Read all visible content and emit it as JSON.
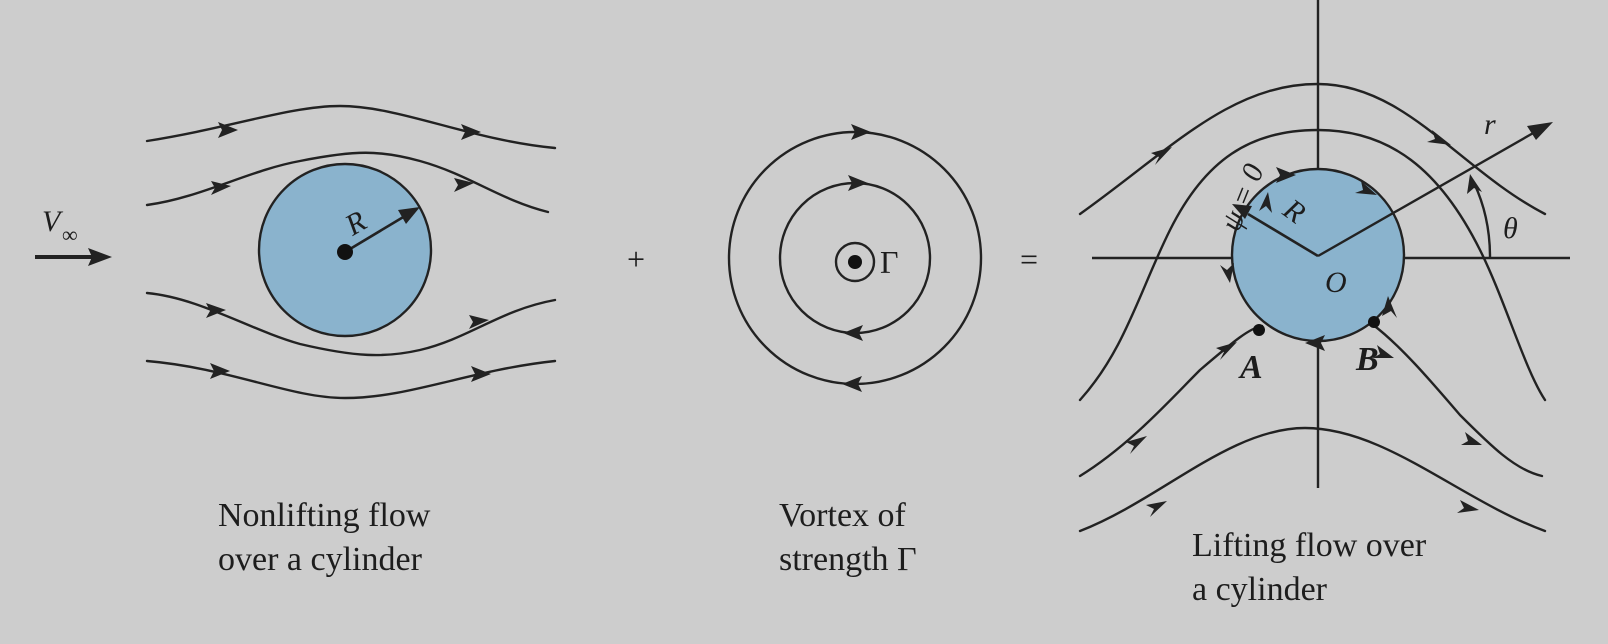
{
  "symbols": {
    "v_inf": "V",
    "v_inf_sub": "∞",
    "radius_left": "R",
    "plus": "+",
    "gamma": "Γ",
    "equals": "=",
    "psi_zero": "ψ = 0",
    "radius_right": "R",
    "origin": "O",
    "r": "r",
    "theta": "θ",
    "point_a": "A",
    "point_b": "B"
  },
  "captions": {
    "nonlifting_line1": "Nonlifting flow",
    "nonlifting_line2": "over a cylinder",
    "vortex_line1": "Vortex of",
    "vortex_line2": "strength Γ",
    "lifting_line1": "Lifting flow over",
    "lifting_line2": "a cylinder"
  },
  "colors": {
    "background": "#cdcdcd",
    "cylinder_fill": "#8ab3cd",
    "line": "#222222"
  }
}
